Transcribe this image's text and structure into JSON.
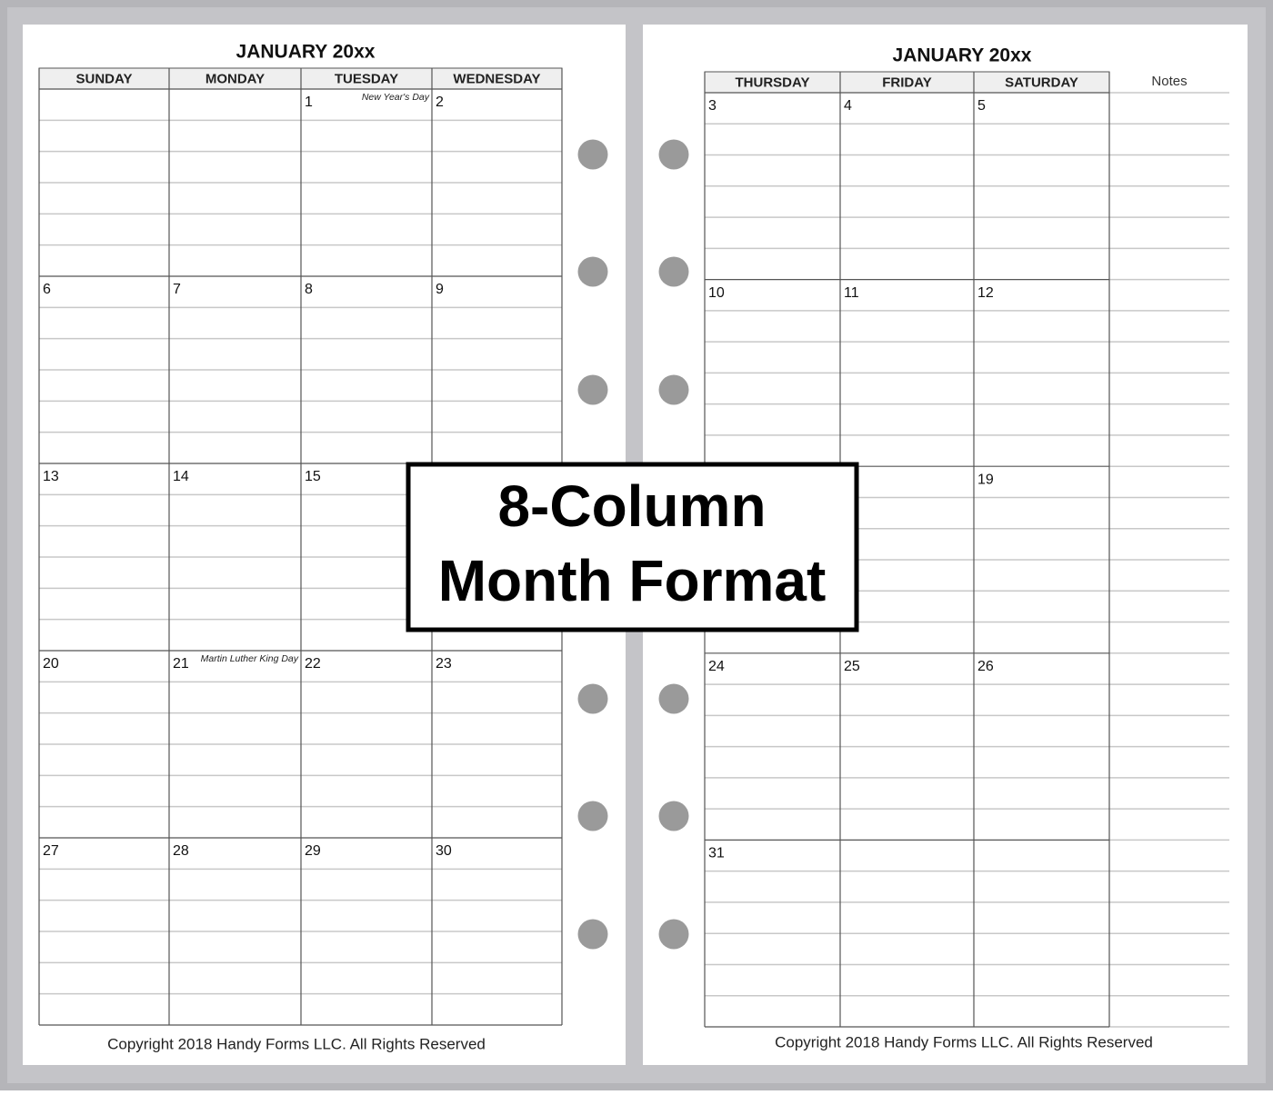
{
  "left": {
    "title": "JANUARY 20xx",
    "days": [
      "SUNDAY",
      "MONDAY",
      "TUESDAY",
      "WEDNESDAY"
    ],
    "weeks": [
      [
        null,
        null,
        {
          "day": "1",
          "note": "New Year's Day"
        },
        {
          "day": "2"
        }
      ],
      [
        {
          "day": "6"
        },
        {
          "day": "7"
        },
        {
          "day": "8"
        },
        {
          "day": "9"
        }
      ],
      [
        {
          "day": "13"
        },
        {
          "day": "14"
        },
        {
          "day": "15"
        },
        null
      ],
      [
        {
          "day": "20"
        },
        {
          "day": "21",
          "note": "Martin Luther King Day"
        },
        {
          "day": "22"
        },
        {
          "day": "23"
        }
      ],
      [
        {
          "day": "27"
        },
        {
          "day": "28"
        },
        {
          "day": "29"
        },
        {
          "day": "30"
        }
      ]
    ],
    "copyright": "Copyright 2018 Handy Forms LLC. All Rights Reserved"
  },
  "right": {
    "title": "JANUARY 20xx",
    "days": [
      "THURSDAY",
      "FRIDAY",
      "SATURDAY"
    ],
    "notes_label": "Notes",
    "weeks": [
      [
        {
          "day": "3"
        },
        {
          "day": "4"
        },
        {
          "day": "5"
        }
      ],
      [
        {
          "day": "10"
        },
        {
          "day": "11"
        },
        {
          "day": "12"
        }
      ],
      [
        null,
        null,
        {
          "day": "19"
        }
      ],
      [
        {
          "day": "24"
        },
        {
          "day": "25"
        },
        {
          "day": "26"
        }
      ],
      [
        {
          "day": "31"
        },
        null,
        null
      ]
    ],
    "copyright": "Copyright 2018 Handy Forms LLC. All Rights Reserved"
  },
  "overlay": {
    "lines": [
      "8-Column",
      "Month Format"
    ]
  }
}
